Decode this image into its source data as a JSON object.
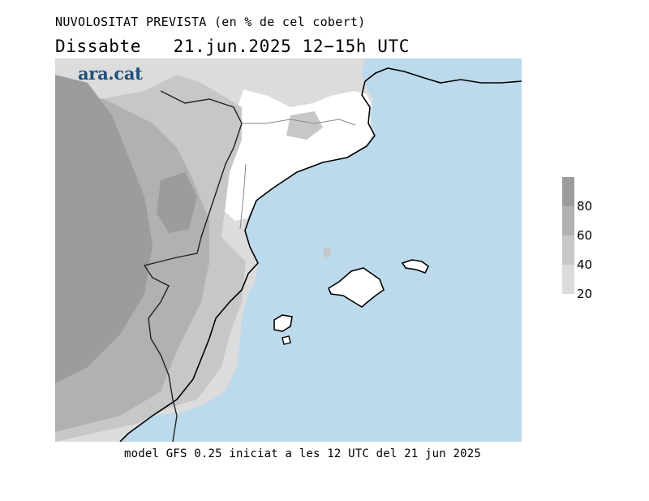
{
  "header": {
    "title": "NUVOLOSITAT PREVISTA (en % de cel cobert)",
    "subtitle": "Dissabte   21.jun.2025 12−15h UTC"
  },
  "brand": {
    "logo_text": "ara.cat"
  },
  "footer": {
    "text": "model GFS 0.25 iniciat a les 12 UTC del 21 jun 2025"
  },
  "legend": {
    "labels": [
      "80",
      "60",
      "40",
      "20"
    ],
    "colors": [
      "#9c9c9c",
      "#b1b1b1",
      "#c7c7c7",
      "#dcdcdc"
    ]
  },
  "colors": {
    "sea": "#bcdaec",
    "clear_land": "#ffffff",
    "cloud_20": "#dcdcdc",
    "cloud_40": "#c7c7c7",
    "cloud_60": "#b1b1b1",
    "cloud_80": "#9c9c9c"
  }
}
